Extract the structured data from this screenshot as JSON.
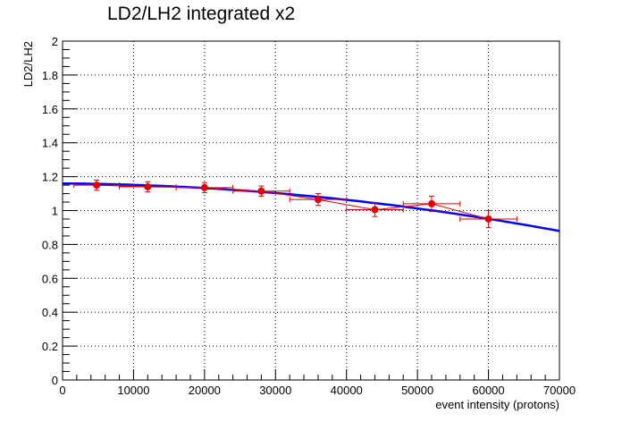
{
  "chart_data": {
    "type": "scatter",
    "title": "LD2/LH2 integrated x2",
    "xlabel": "event intensity (protons)",
    "ylabel": "LD2/LH2",
    "xlim": [
      0,
      70000
    ],
    "ylim": [
      0,
      2
    ],
    "grid": true,
    "legend": "none",
    "x_ticks": [
      "0",
      "10000",
      "20000",
      "30000",
      "40000",
      "50000",
      "60000",
      "70000"
    ],
    "y_ticks": [
      "0",
      "0.2",
      "0.4",
      "0.6",
      "0.8",
      "1",
      "1.2",
      "1.4",
      "1.6",
      "1.8",
      "2"
    ],
    "series": [
      {
        "type": "scatter",
        "color": "#e00000",
        "points": [
          {
            "x": 4800,
            "y": 1.15,
            "ex": 3200,
            "ey": 0.03
          },
          {
            "x": 12000,
            "y": 1.14,
            "ex": 4000,
            "ey": 0.03
          },
          {
            "x": 20000,
            "y": 1.135,
            "ex": 4000,
            "ey": 0.03
          },
          {
            "x": 28000,
            "y": 1.115,
            "ex": 4000,
            "ey": 0.03
          },
          {
            "x": 36000,
            "y": 1.065,
            "ex": 4000,
            "ey": 0.035
          },
          {
            "x": 44000,
            "y": 1.005,
            "ex": 4000,
            "ey": 0.04
          },
          {
            "x": 52000,
            "y": 1.04,
            "ex": 4000,
            "ey": 0.045
          },
          {
            "x": 60000,
            "y": 0.95,
            "ex": 4000,
            "ey": 0.05
          }
        ]
      },
      {
        "type": "line",
        "color": "#0000ff",
        "fit": {
          "a": 1.16,
          "b": 3e-07,
          "c": 5.3e-11
        },
        "x": [
          0,
          70000
        ]
      }
    ]
  }
}
